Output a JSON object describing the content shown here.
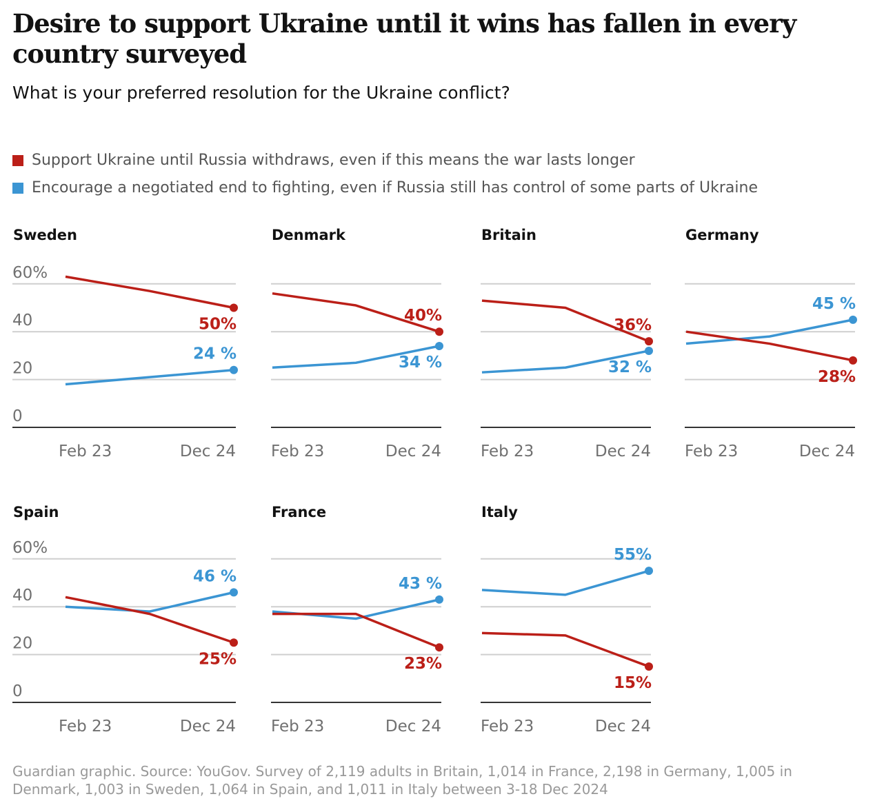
{
  "title": "Desire to support Ukraine until it wins has fallen in every country surveyed",
  "subtitle": "What is your preferred resolution for the Ukraine conflict?",
  "footer": "Guardian graphic. Source: YouGov. Survey of 2,119 adults in Britain, 1,014 in France, 2,198 in Germany, 1,005 in Denmark, 1,003 in Sweden, 1,064 in Spain, and 1,011 in Italy between 3-18 Dec 2024",
  "colors": {
    "support": "#bb1f18",
    "negotiate": "#3b95d3"
  },
  "chart_data": {
    "type": "line",
    "layout": "small-multiples",
    "legend": [
      {
        "key": "support",
        "label": "Support Ukraine until Russia withdraws, even if this means the war lasts longer"
      },
      {
        "key": "negotiate",
        "label": "Encourage a negotiated end to fighting, even if Russia still has control of some parts of Ukraine"
      }
    ],
    "x_tick_labels": [
      "Feb 23",
      "Dec 24"
    ],
    "y_tick_labels": [
      "60%",
      "40",
      "20",
      "0"
    ],
    "ylim": [
      0,
      60
    ],
    "grid": true,
    "panels": [
      {
        "country": "Sweden",
        "support": [
          63,
          57,
          50
        ],
        "negotiate": [
          18,
          21,
          24
        ],
        "support_label": "50%",
        "negotiate_label": "24 %",
        "support_pos": "below",
        "negotiate_pos": "above"
      },
      {
        "country": "Denmark",
        "support": [
          56,
          51,
          40
        ],
        "negotiate": [
          25,
          27,
          34
        ],
        "support_label": "40%",
        "negotiate_label": "34 %",
        "support_pos": "above",
        "negotiate_pos": "below"
      },
      {
        "country": "Britain",
        "support": [
          53,
          50,
          36
        ],
        "negotiate": [
          23,
          25,
          32
        ],
        "support_label": "36%",
        "negotiate_label": "32 %",
        "support_pos": "above",
        "negotiate_pos": "below"
      },
      {
        "country": "Germany",
        "support": [
          40,
          35,
          28
        ],
        "negotiate": [
          35,
          38,
          45
        ],
        "support_label": "28%",
        "negotiate_label": "45 %",
        "support_pos": "below",
        "negotiate_pos": "above"
      },
      {
        "country": "Spain",
        "support": [
          44,
          37,
          25
        ],
        "negotiate": [
          40,
          38,
          46
        ],
        "support_label": "25%",
        "negotiate_label": "46 %",
        "support_pos": "below",
        "negotiate_pos": "above"
      },
      {
        "country": "France",
        "support": [
          37,
          37,
          23
        ],
        "negotiate": [
          38,
          35,
          43
        ],
        "support_label": "23%",
        "negotiate_label": "43 %",
        "support_pos": "below",
        "negotiate_pos": "above"
      },
      {
        "country": "Italy",
        "support": [
          29,
          28,
          15
        ],
        "negotiate": [
          47,
          45,
          55
        ],
        "support_label": "15%",
        "negotiate_label": "55%",
        "support_pos": "below",
        "negotiate_pos": "above"
      }
    ]
  }
}
